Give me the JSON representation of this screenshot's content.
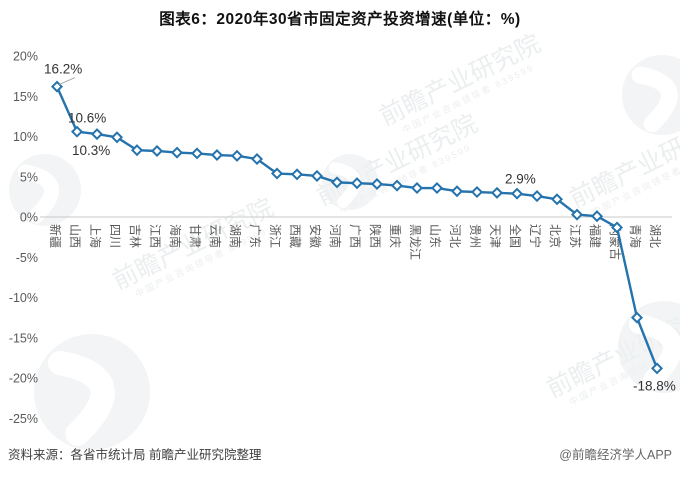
{
  "title": "图表6：2020年30省市固定资产投资增速(单位：%)",
  "chart_data": {
    "type": "line",
    "title": "图表6：2020年30省市固定资产投资增速(单位：%)",
    "unit": "%",
    "categories": [
      "新疆",
      "山西",
      "上海",
      "四川",
      "吉林",
      "江西",
      "海南",
      "甘肃",
      "云南",
      "湖南",
      "广东",
      "浙江",
      "西藏",
      "安徽",
      "河南",
      "广西",
      "陕西",
      "重庆",
      "黑龙江",
      "山东",
      "河北",
      "贵州",
      "天津",
      "全国",
      "辽宁",
      "北京",
      "江苏",
      "福建",
      "内蒙古",
      "青海",
      "湖北"
    ],
    "values": [
      16.2,
      10.6,
      10.3,
      9.9,
      8.3,
      8.2,
      8.0,
      7.9,
      7.7,
      7.6,
      7.2,
      5.4,
      5.3,
      5.1,
      4.3,
      4.2,
      4.1,
      3.9,
      3.6,
      3.6,
      3.2,
      3.1,
      3.0,
      2.9,
      2.6,
      2.2,
      0.3,
      0.1,
      -1.3,
      -12.5,
      -18.8
    ],
    "ylim": [
      -25,
      20
    ],
    "yticks": [
      20,
      15,
      10,
      5,
      0,
      -5,
      -10,
      -15,
      -20,
      -25
    ],
    "ytick_labels": [
      "20%",
      "15%",
      "10%",
      "5%",
      "0%",
      "-5%",
      "-10%",
      "-15%",
      "-20%",
      "-25%"
    ],
    "grid": false,
    "legend": false,
    "annotations": [
      {
        "index": 0,
        "category": "新疆",
        "label": "16.2%"
      },
      {
        "index": 1,
        "category": "山西",
        "label": "10.6%"
      },
      {
        "index": 2,
        "category": "上海",
        "label": "10.3%"
      },
      {
        "index": 23,
        "category": "全国",
        "label": "2.9%"
      },
      {
        "index": 30,
        "category": "湖北",
        "label": "-18.8%"
      }
    ]
  },
  "watermark": {
    "text": "前瞻产业研究院",
    "subtext": "中国产业咨询领导者",
    "code": "839599"
  },
  "footer": {
    "source": "资料来源：各省市统计局 前瞻产业研究院整理",
    "credit": "@前瞻经济学人APP"
  },
  "colors": {
    "line": "#2473ad",
    "marker_fill": "#ffffff",
    "axis_text": "#595959",
    "annotation_text": "#333333",
    "axis_line": "#c9c9c9",
    "leader_line": "#a6a6a6",
    "watermark": "#e7eaec"
  }
}
